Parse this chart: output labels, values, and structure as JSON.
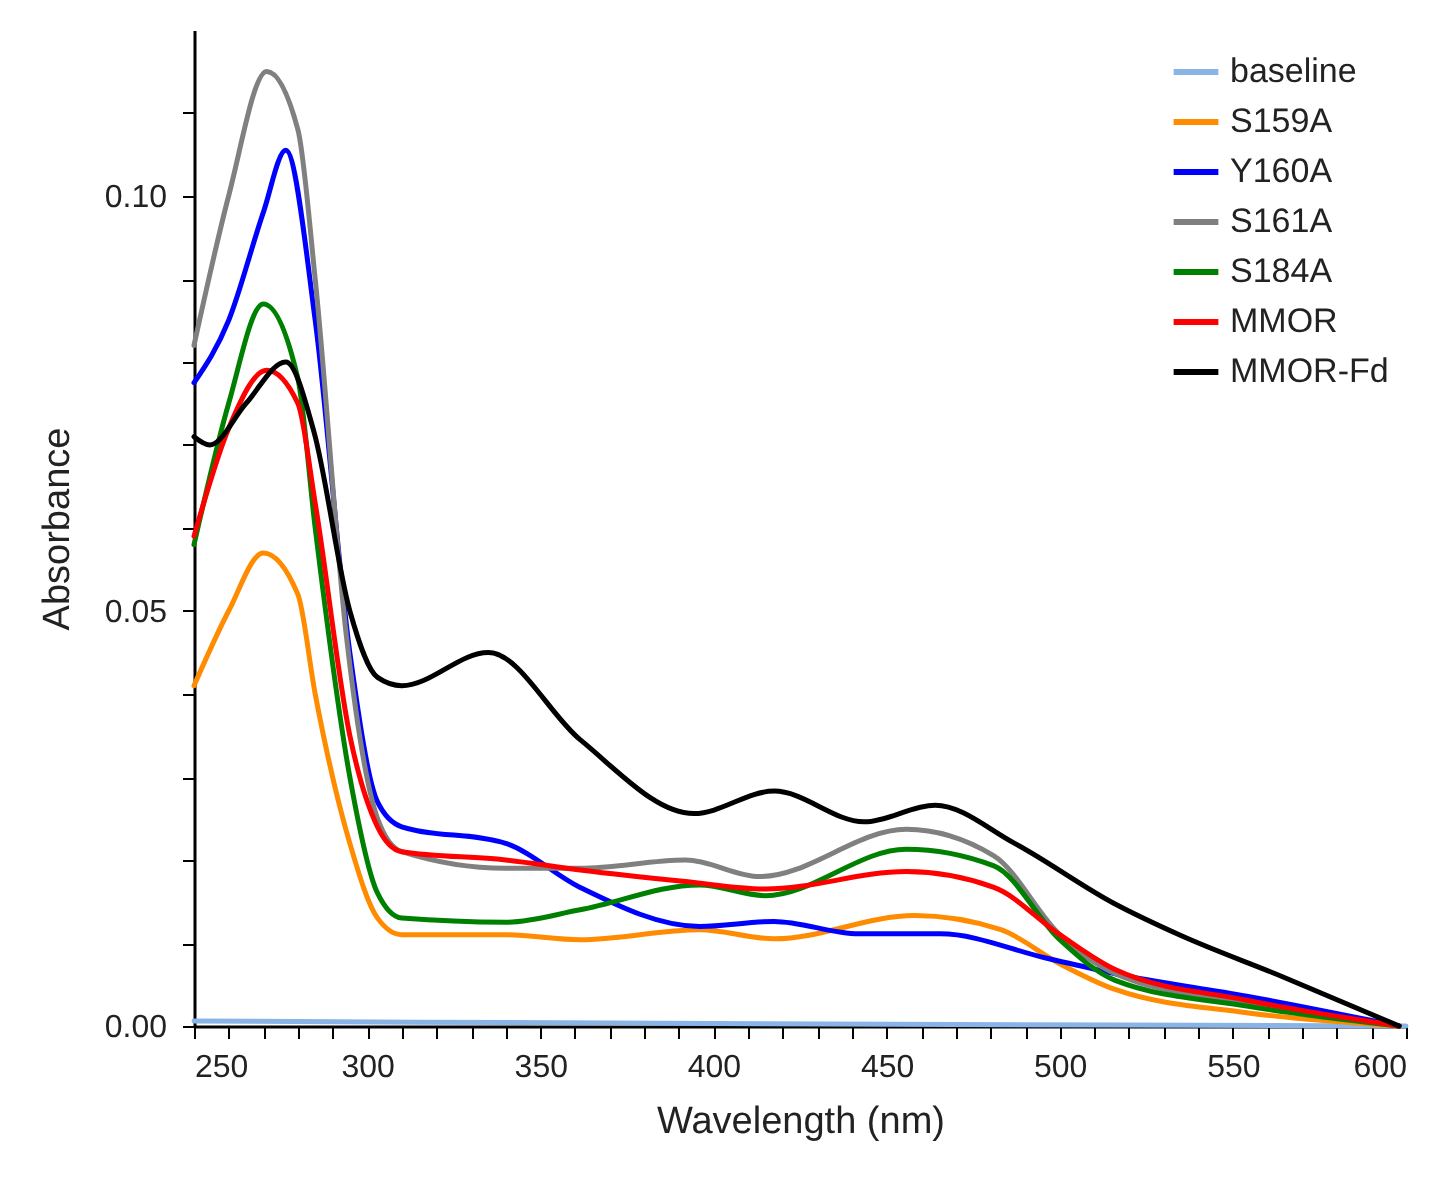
{
  "chart_data": {
    "type": "line",
    "xlabel": "Wavelength (nm)",
    "ylabel": "Absorbance",
    "xlim": [
      250,
      600
    ],
    "ylim": [
      0,
      0.12
    ],
    "xticks": [
      250,
      {
        "value": 260,
        "label": null
      },
      {
        "value": 270,
        "label": null
      },
      {
        "value": 280,
        "label": null
      },
      {
        "value": 290,
        "label": null
      },
      300,
      {
        "value": 310,
        "label": null
      },
      {
        "value": 320,
        "label": null
      },
      {
        "value": 330,
        "label": null
      },
      {
        "value": 340,
        "label": null
      },
      350,
      {
        "value": 360,
        "label": null
      },
      {
        "value": 370,
        "label": null
      },
      {
        "value": 380,
        "label": null
      },
      {
        "value": 390,
        "label": null
      },
      400,
      {
        "value": 410,
        "label": null
      },
      {
        "value": 420,
        "label": null
      },
      {
        "value": 430,
        "label": null
      },
      {
        "value": 440,
        "label": null
      },
      450,
      {
        "value": 460,
        "label": null
      },
      {
        "value": 470,
        "label": null
      },
      {
        "value": 480,
        "label": null
      },
      {
        "value": 490,
        "label": null
      },
      500,
      {
        "value": 510,
        "label": null
      },
      {
        "value": 520,
        "label": null
      },
      {
        "value": 530,
        "label": null
      },
      {
        "value": 540,
        "label": null
      },
      550,
      {
        "value": 560,
        "label": null
      },
      {
        "value": 570,
        "label": null
      },
      {
        "value": 580,
        "label": null
      },
      {
        "value": 590,
        "label": null
      },
      600
    ],
    "yticks": [
      {
        "value": 0,
        "label": "0.00"
      },
      {
        "value": 0.01,
        "label": null
      },
      {
        "value": 0.02,
        "label": null
      },
      {
        "value": 0.03,
        "label": null
      },
      {
        "value": 0.04,
        "label": null
      },
      0.05,
      {
        "value": 0.06,
        "label": null
      },
      {
        "value": 0.07,
        "label": null
      },
      {
        "value": 0.08,
        "label": null
      },
      {
        "value": 0.09,
        "label": null
      },
      {
        "value": 0.1,
        "label": "0.10"
      },
      {
        "value": 0.11,
        "label": null
      }
    ],
    "grid": false,
    "legend": "top right",
    "line_style": "solid",
    "marker": "none",
    "series": [
      {
        "name": "baseline",
        "color": "#88b4e8",
        "x": [
          250,
          400,
          600
        ],
        "values": [
          0.0006,
          0.0003,
          0
        ]
      },
      {
        "name": "S159A",
        "color": "#ff8c00",
        "x": [
          250,
          260,
          270,
          280,
          285,
          295,
          303,
          310,
          340,
          361.5,
          396,
          417.5,
          458,
          483,
          500,
          516,
          554,
          598
        ],
        "values": [
          0.041,
          0.05,
          0.057,
          0.052,
          0.04,
          0.022,
          0.013,
          0.011,
          0.011,
          0.0104,
          0.0116,
          0.0105,
          0.0133,
          0.0116,
          0.0075,
          0.0044,
          0.0016,
          0
        ]
      },
      {
        "name": "Y160A",
        "color": "#0000ff",
        "x": [
          250,
          260,
          270,
          276.5,
          285,
          295,
          303,
          310,
          340,
          361.5,
          396,
          417.5,
          442,
          465.5,
          496,
          516,
          554,
          598
        ],
        "values": [
          0.0775,
          0.085,
          0.098,
          0.1055,
          0.085,
          0.045,
          0.027,
          0.024,
          0.022,
          0.0167,
          0.012,
          0.0126,
          0.0111,
          0.0111,
          0.0082,
          0.0063,
          0.0036,
          0
        ]
      },
      {
        "name": "S161A",
        "color": "#808080",
        "x": [
          250,
          260,
          271,
          280,
          285,
          294,
          303,
          310,
          340,
          361.5,
          392,
          413.5,
          455.7,
          481,
          500,
          516,
          554,
          598
        ],
        "values": [
          0.082,
          0.1,
          0.115,
          0.108,
          0.09,
          0.047,
          0.025,
          0.021,
          0.019,
          0.019,
          0.02,
          0.018,
          0.0237,
          0.0205,
          0.011,
          0.0063,
          0.0028,
          0
        ]
      },
      {
        "name": "S184A",
        "color": "#008000",
        "x": [
          250,
          260,
          270,
          280,
          285,
          295,
          303,
          310,
          340,
          361.5,
          396,
          415,
          455.7,
          481,
          500,
          516,
          554,
          598
        ],
        "values": [
          0.058,
          0.075,
          0.087,
          0.078,
          0.06,
          0.03,
          0.016,
          0.013,
          0.0125,
          0.014,
          0.017,
          0.0157,
          0.0213,
          0.0193,
          0.0104,
          0.0055,
          0.0024,
          0
        ]
      },
      {
        "name": "MMOR",
        "color": "#ff0000",
        "x": [
          250,
          260,
          271,
          280,
          285,
          295,
          303,
          310,
          340,
          361.5,
          392,
          415,
          455.7,
          481,
          500,
          516,
          554,
          598
        ],
        "values": [
          0.059,
          0.072,
          0.079,
          0.075,
          0.063,
          0.035,
          0.024,
          0.021,
          0.02,
          0.0188,
          0.0174,
          0.0165,
          0.0186,
          0.0167,
          0.011,
          0.0068,
          0.0031,
          0
        ]
      },
      {
        "name": "MMOR-Fd",
        "color": "#000000",
        "x": [
          250,
          254.6,
          265,
          276.5,
          284.7,
          295,
          303,
          310,
          335,
          361.5,
          394.4,
          417.5,
          443.5,
          464,
          487,
          516,
          535,
          564,
          598
        ],
        "values": [
          0.071,
          0.07,
          0.075,
          0.08,
          0.0715,
          0.05,
          0.042,
          0.041,
          0.045,
          0.0345,
          0.0256,
          0.0283,
          0.0246,
          0.0266,
          0.022,
          0.0147,
          0.0109,
          0.006,
          0
        ]
      }
    ]
  }
}
